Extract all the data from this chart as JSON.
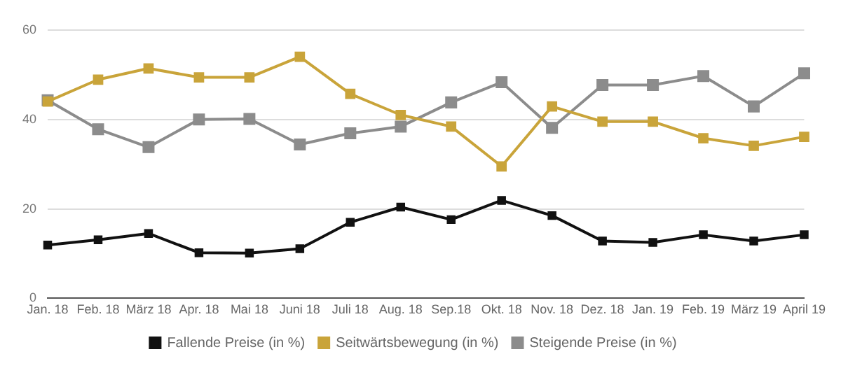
{
  "chart_data": {
    "type": "line",
    "categories": [
      "Jan. 18",
      "Feb. 18",
      "März 18",
      "Apr. 18",
      "Mai 18",
      "Juni 18",
      "Juli 18",
      "Aug. 18",
      "Sep.18",
      "Okt. 18",
      "Nov. 18",
      "Dez. 18",
      "Jan. 19",
      "Feb. 19",
      "März 19",
      "April 19"
    ],
    "series": [
      {
        "name": "Fallende Preise (in %)",
        "color": "#111111",
        "values": [
          11.9,
          13.1,
          14.5,
          10.2,
          10.1,
          11.1,
          17.0,
          20.4,
          17.6,
          21.9,
          18.5,
          12.8,
          12.5,
          14.2,
          12.8,
          14.2
        ]
      },
      {
        "name": "Seitwärtsbewegung (in %)",
        "color": "#c9a43a",
        "values": [
          44.0,
          48.9,
          51.4,
          49.4,
          49.4,
          54.0,
          45.7,
          41.0,
          38.4,
          29.5,
          42.9,
          39.5,
          39.5,
          35.8,
          34.1,
          36.1
        ]
      },
      {
        "name": "Steigende Preise (in %)",
        "color": "#8c8c8c",
        "values": [
          44.3,
          37.8,
          33.8,
          40.0,
          40.1,
          34.4,
          36.9,
          38.4,
          43.8,
          48.3,
          38.1,
          47.7,
          47.7,
          49.7,
          42.9,
          50.3
        ]
      }
    ],
    "ylim": [
      0,
      60
    ],
    "yticks": [
      0,
      20,
      40,
      60
    ],
    "grid": "y",
    "legend": "bottom",
    "marker": "square",
    "line_style": "solid"
  }
}
